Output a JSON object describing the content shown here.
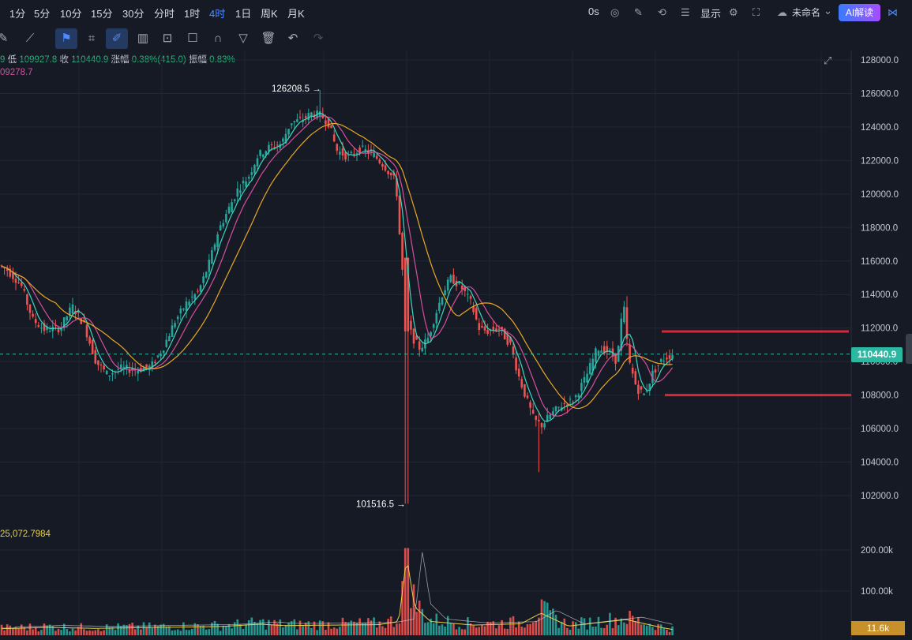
{
  "timeframes": [
    "1分",
    "5分",
    "10分",
    "15分",
    "30分",
    "分时",
    "1时",
    "4时",
    "1日",
    "周K",
    "月K"
  ],
  "active_timeframe": "4时",
  "top_right": {
    "countdown": "0s",
    "display_label": "显示",
    "layout_name": "未命名",
    "ai_label": "AI解读"
  },
  "icons": {
    "camera": "camera-icon",
    "pen": "pen-icon",
    "sync": "sync-icon",
    "list": "list-icon",
    "gear": "gear-icon",
    "fullscreen": "fullscreen-icon",
    "cloud": "cloud-icon",
    "share": "share-icon"
  },
  "toolbar_tools": [
    "edit-icon",
    "brush-icon",
    "bookmark-icon",
    "ruler-icon",
    "magic-pen-icon",
    "candles-icon",
    "lock-icon",
    "note-icon",
    "magnet-icon",
    "filter-icon",
    "trash-icon",
    "undo-icon",
    "redo-icon"
  ],
  "info": {
    "line1_prefix": "9",
    "low_label": "低",
    "low_value": "109927.8",
    "close_label": "收",
    "close_value": "110440.9",
    "change_label": "涨幅",
    "change_value": "0.38%(415.0)",
    "amp_label": "振幅",
    "amp_value": "0.83%",
    "ma_value": "09278.7",
    "vol_ma_value": "25,072.7984"
  },
  "current_price_label": "110440.9",
  "volume_last_label": "11.6k",
  "colors": {
    "up": "#26a69a",
    "down": "#ef5350",
    "ma5": "#3fd6c0",
    "ma10": "#d64fa0",
    "ma20": "#e9a825",
    "hline": "#d6283a"
  },
  "chart_data": {
    "type": "candlestick",
    "y_axis_labels": [
      "128000.0",
      "126000.0",
      "124000.0",
      "122000.0",
      "120000.0",
      "118000.0",
      "116000.0",
      "114000.0",
      "112000.0",
      "110000.0",
      "108000.0",
      "106000.0",
      "104000.0",
      "102000.0"
    ],
    "ylim": [
      101000,
      128500
    ],
    "volume_axis_labels": [
      "200.00k",
      "100.00k"
    ],
    "annotations": [
      {
        "text": "126208.5 →",
        "price": 126208.5
      },
      {
        "text": "101516.5 →",
        "price": 101516.5
      }
    ],
    "horizontal_lines": [
      111800,
      108000
    ],
    "price_keypoints": [
      [
        0,
        115800
      ],
      [
        12,
        115500
      ],
      [
        30,
        114600
      ],
      [
        45,
        112500
      ],
      [
        60,
        111900
      ],
      [
        80,
        112000
      ],
      [
        95,
        113300
      ],
      [
        110,
        112200
      ],
      [
        125,
        110000
      ],
      [
        140,
        109200
      ],
      [
        155,
        109600
      ],
      [
        175,
        109500
      ],
      [
        195,
        109700
      ],
      [
        210,
        110800
      ],
      [
        225,
        112400
      ],
      [
        240,
        113500
      ],
      [
        255,
        114200
      ],
      [
        268,
        115800
      ],
      [
        280,
        117800
      ],
      [
        292,
        119000
      ],
      [
        305,
        120300
      ],
      [
        318,
        121000
      ],
      [
        330,
        122300
      ],
      [
        345,
        122800
      ],
      [
        360,
        123000
      ],
      [
        372,
        124300
      ],
      [
        385,
        124400
      ],
      [
        398,
        124800
      ],
      [
        410,
        124700
      ],
      [
        420,
        124200
      ],
      [
        430,
        122600
      ],
      [
        445,
        122200
      ],
      [
        460,
        122700
      ],
      [
        475,
        122400
      ],
      [
        490,
        121700
      ],
      [
        505,
        120700
      ],
      [
        512,
        116000
      ],
      [
        518,
        113000
      ],
      [
        525,
        111500
      ],
      [
        535,
        110800
      ],
      [
        545,
        111300
      ],
      [
        555,
        112800
      ],
      [
        565,
        114200
      ],
      [
        575,
        115000
      ],
      [
        590,
        114300
      ],
      [
        600,
        113500
      ],
      [
        610,
        112000
      ],
      [
        620,
        111800
      ],
      [
        635,
        112000
      ],
      [
        650,
        111000
      ],
      [
        660,
        109200
      ],
      [
        670,
        107800
      ],
      [
        680,
        106500
      ],
      [
        690,
        106200
      ],
      [
        700,
        106800
      ],
      [
        715,
        107400
      ],
      [
        730,
        107700
      ],
      [
        745,
        109000
      ],
      [
        760,
        110800
      ],
      [
        775,
        110600
      ],
      [
        785,
        110000
      ],
      [
        793,
        113600
      ],
      [
        800,
        110000
      ],
      [
        810,
        108400
      ],
      [
        820,
        108000
      ],
      [
        830,
        109300
      ],
      [
        842,
        110100
      ],
      [
        855,
        110440
      ]
    ],
    "volume_keypoints": [
      [
        0,
        14000
      ],
      [
        60,
        17000
      ],
      [
        120,
        15000
      ],
      [
        200,
        17000
      ],
      [
        280,
        19000
      ],
      [
        330,
        24000
      ],
      [
        360,
        21000
      ],
      [
        420,
        22000
      ],
      [
        480,
        23000
      ],
      [
        505,
        30000
      ],
      [
        515,
        170000
      ],
      [
        525,
        62000
      ],
      [
        545,
        30000
      ],
      [
        600,
        22000
      ],
      [
        660,
        25000
      ],
      [
        685,
        48000
      ],
      [
        720,
        20000
      ],
      [
        793,
        34000
      ],
      [
        840,
        16000
      ],
      [
        855,
        11600
      ]
    ]
  }
}
